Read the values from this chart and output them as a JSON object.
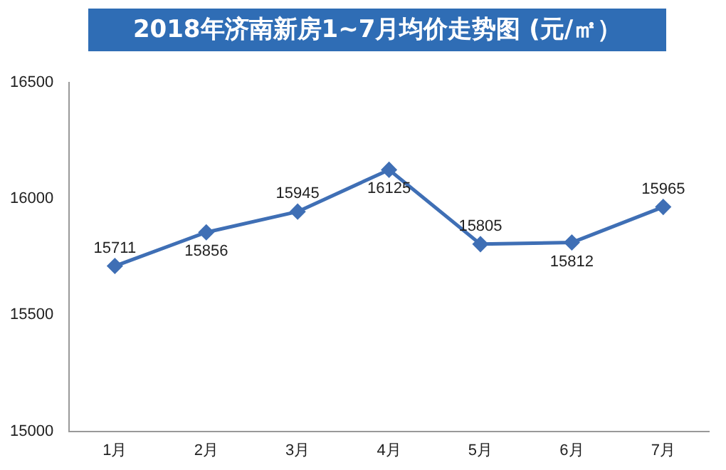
{
  "chart_data": {
    "type": "line",
    "title": "2018年济南新房1~7月均价走势图 (元/㎡）",
    "categories": [
      "1月",
      "2月",
      "3月",
      "4月",
      "5月",
      "6月",
      "7月"
    ],
    "values": [
      15711,
      15856,
      15945,
      16125,
      15805,
      15812,
      15965
    ],
    "color": "#3f6fb5",
    "marker": "diamond",
    "data_labels": true,
    "ylim": [
      15000,
      16500
    ],
    "yticks": [
      15000,
      15500,
      16000,
      16500
    ],
    "grid": false
  }
}
